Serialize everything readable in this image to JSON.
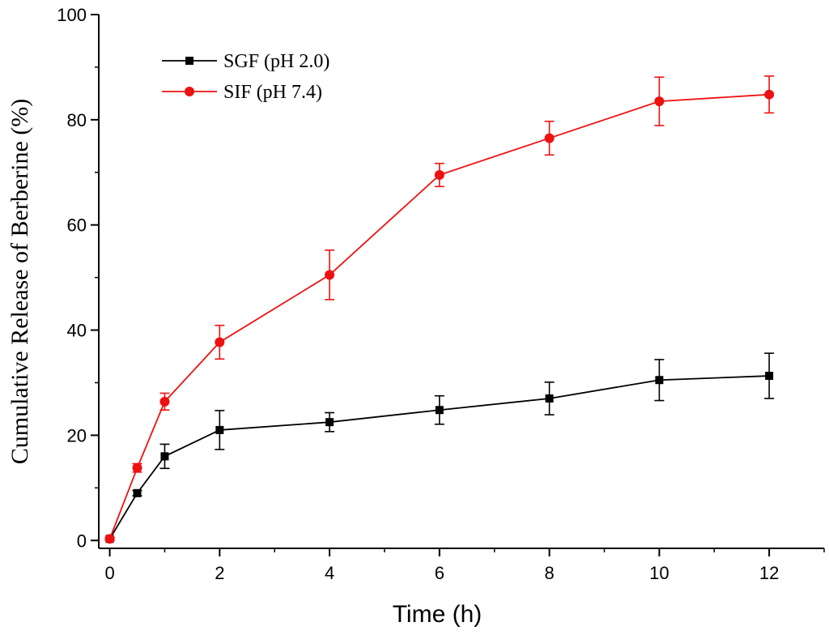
{
  "chart_data": {
    "type": "line",
    "xlabel": "Time (h)",
    "ylabel": "Cumulative Release of Berberine (%)",
    "xlim": [
      -0.2,
      13.0
    ],
    "ylim": [
      -1.5,
      100
    ],
    "x_ticks": [
      0,
      2,
      4,
      6,
      8,
      10,
      12
    ],
    "y_ticks": [
      0,
      20,
      40,
      60,
      80,
      100
    ],
    "legend_position": "top-left",
    "series": [
      {
        "name": "SGF (pH 2.0)",
        "color": "#000000",
        "marker": "square",
        "x": [
          0,
          0.5,
          1,
          2,
          4,
          6,
          8,
          10,
          12
        ],
        "values": [
          0.3,
          9.0,
          16.0,
          21.0,
          22.5,
          24.8,
          27.0,
          30.5,
          31.3
        ],
        "errors": [
          0.3,
          0.5,
          2.3,
          3.7,
          1.8,
          2.7,
          3.1,
          3.9,
          4.3
        ]
      },
      {
        "name": "SIF (pH 7.4)",
        "color": "#ee1111",
        "marker": "circle",
        "x": [
          0,
          0.5,
          1,
          2,
          4,
          6,
          8,
          10,
          12
        ],
        "values": [
          0.3,
          13.8,
          26.4,
          37.7,
          50.5,
          69.5,
          76.5,
          83.5,
          84.8
        ],
        "errors": [
          0.3,
          0.8,
          1.6,
          3.2,
          4.7,
          2.2,
          3.2,
          4.6,
          3.5
        ]
      }
    ]
  }
}
